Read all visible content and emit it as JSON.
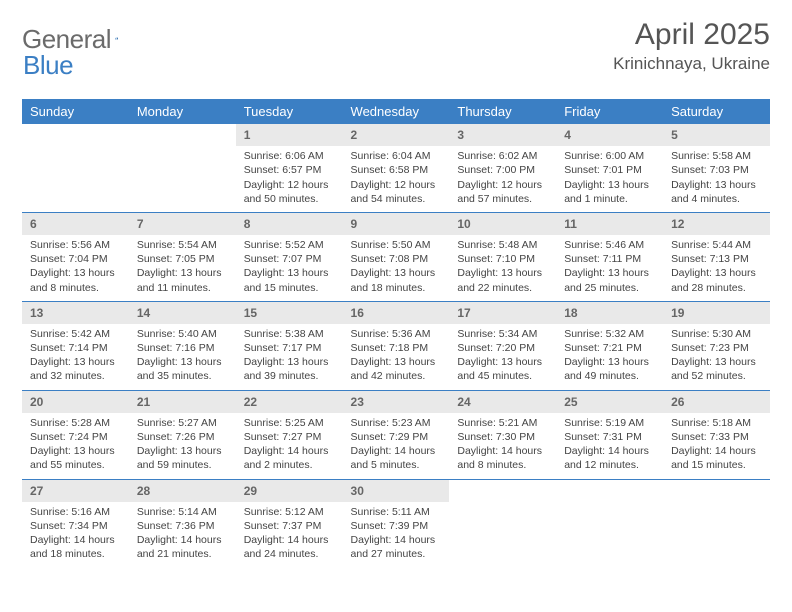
{
  "logo": {
    "text_a": "General",
    "text_b": "Blue"
  },
  "title": "April 2025",
  "location": "Krinichnaya, Ukraine",
  "theme": {
    "header_bg": "#3b7fc4",
    "header_fg": "#ffffff",
    "row_border": "#3b7fc4",
    "daynum_bg": "#e9e9e9",
    "daynum_fg": "#666666",
    "body_text": "#444444",
    "logo_gray": "#6b6b6b",
    "logo_blue": "#3b7fc4"
  },
  "day_labels": [
    "Sunday",
    "Monday",
    "Tuesday",
    "Wednesday",
    "Thursday",
    "Friday",
    "Saturday"
  ],
  "weeks": [
    [
      null,
      null,
      {
        "n": "1",
        "sr": "Sunrise: 6:06 AM",
        "ss": "Sunset: 6:57 PM",
        "dl": "Daylight: 12 hours and 50 minutes."
      },
      {
        "n": "2",
        "sr": "Sunrise: 6:04 AM",
        "ss": "Sunset: 6:58 PM",
        "dl": "Daylight: 12 hours and 54 minutes."
      },
      {
        "n": "3",
        "sr": "Sunrise: 6:02 AM",
        "ss": "Sunset: 7:00 PM",
        "dl": "Daylight: 12 hours and 57 minutes."
      },
      {
        "n": "4",
        "sr": "Sunrise: 6:00 AM",
        "ss": "Sunset: 7:01 PM",
        "dl": "Daylight: 13 hours and 1 minute."
      },
      {
        "n": "5",
        "sr": "Sunrise: 5:58 AM",
        "ss": "Sunset: 7:03 PM",
        "dl": "Daylight: 13 hours and 4 minutes."
      }
    ],
    [
      {
        "n": "6",
        "sr": "Sunrise: 5:56 AM",
        "ss": "Sunset: 7:04 PM",
        "dl": "Daylight: 13 hours and 8 minutes."
      },
      {
        "n": "7",
        "sr": "Sunrise: 5:54 AM",
        "ss": "Sunset: 7:05 PM",
        "dl": "Daylight: 13 hours and 11 minutes."
      },
      {
        "n": "8",
        "sr": "Sunrise: 5:52 AM",
        "ss": "Sunset: 7:07 PM",
        "dl": "Daylight: 13 hours and 15 minutes."
      },
      {
        "n": "9",
        "sr": "Sunrise: 5:50 AM",
        "ss": "Sunset: 7:08 PM",
        "dl": "Daylight: 13 hours and 18 minutes."
      },
      {
        "n": "10",
        "sr": "Sunrise: 5:48 AM",
        "ss": "Sunset: 7:10 PM",
        "dl": "Daylight: 13 hours and 22 minutes."
      },
      {
        "n": "11",
        "sr": "Sunrise: 5:46 AM",
        "ss": "Sunset: 7:11 PM",
        "dl": "Daylight: 13 hours and 25 minutes."
      },
      {
        "n": "12",
        "sr": "Sunrise: 5:44 AM",
        "ss": "Sunset: 7:13 PM",
        "dl": "Daylight: 13 hours and 28 minutes."
      }
    ],
    [
      {
        "n": "13",
        "sr": "Sunrise: 5:42 AM",
        "ss": "Sunset: 7:14 PM",
        "dl": "Daylight: 13 hours and 32 minutes."
      },
      {
        "n": "14",
        "sr": "Sunrise: 5:40 AM",
        "ss": "Sunset: 7:16 PM",
        "dl": "Daylight: 13 hours and 35 minutes."
      },
      {
        "n": "15",
        "sr": "Sunrise: 5:38 AM",
        "ss": "Sunset: 7:17 PM",
        "dl": "Daylight: 13 hours and 39 minutes."
      },
      {
        "n": "16",
        "sr": "Sunrise: 5:36 AM",
        "ss": "Sunset: 7:18 PM",
        "dl": "Daylight: 13 hours and 42 minutes."
      },
      {
        "n": "17",
        "sr": "Sunrise: 5:34 AM",
        "ss": "Sunset: 7:20 PM",
        "dl": "Daylight: 13 hours and 45 minutes."
      },
      {
        "n": "18",
        "sr": "Sunrise: 5:32 AM",
        "ss": "Sunset: 7:21 PM",
        "dl": "Daylight: 13 hours and 49 minutes."
      },
      {
        "n": "19",
        "sr": "Sunrise: 5:30 AM",
        "ss": "Sunset: 7:23 PM",
        "dl": "Daylight: 13 hours and 52 minutes."
      }
    ],
    [
      {
        "n": "20",
        "sr": "Sunrise: 5:28 AM",
        "ss": "Sunset: 7:24 PM",
        "dl": "Daylight: 13 hours and 55 minutes."
      },
      {
        "n": "21",
        "sr": "Sunrise: 5:27 AM",
        "ss": "Sunset: 7:26 PM",
        "dl": "Daylight: 13 hours and 59 minutes."
      },
      {
        "n": "22",
        "sr": "Sunrise: 5:25 AM",
        "ss": "Sunset: 7:27 PM",
        "dl": "Daylight: 14 hours and 2 minutes."
      },
      {
        "n": "23",
        "sr": "Sunrise: 5:23 AM",
        "ss": "Sunset: 7:29 PM",
        "dl": "Daylight: 14 hours and 5 minutes."
      },
      {
        "n": "24",
        "sr": "Sunrise: 5:21 AM",
        "ss": "Sunset: 7:30 PM",
        "dl": "Daylight: 14 hours and 8 minutes."
      },
      {
        "n": "25",
        "sr": "Sunrise: 5:19 AM",
        "ss": "Sunset: 7:31 PM",
        "dl": "Daylight: 14 hours and 12 minutes."
      },
      {
        "n": "26",
        "sr": "Sunrise: 5:18 AM",
        "ss": "Sunset: 7:33 PM",
        "dl": "Daylight: 14 hours and 15 minutes."
      }
    ],
    [
      {
        "n": "27",
        "sr": "Sunrise: 5:16 AM",
        "ss": "Sunset: 7:34 PM",
        "dl": "Daylight: 14 hours and 18 minutes."
      },
      {
        "n": "28",
        "sr": "Sunrise: 5:14 AM",
        "ss": "Sunset: 7:36 PM",
        "dl": "Daylight: 14 hours and 21 minutes."
      },
      {
        "n": "29",
        "sr": "Sunrise: 5:12 AM",
        "ss": "Sunset: 7:37 PM",
        "dl": "Daylight: 14 hours and 24 minutes."
      },
      {
        "n": "30",
        "sr": "Sunrise: 5:11 AM",
        "ss": "Sunset: 7:39 PM",
        "dl": "Daylight: 14 hours and 27 minutes."
      },
      null,
      null,
      null
    ]
  ]
}
